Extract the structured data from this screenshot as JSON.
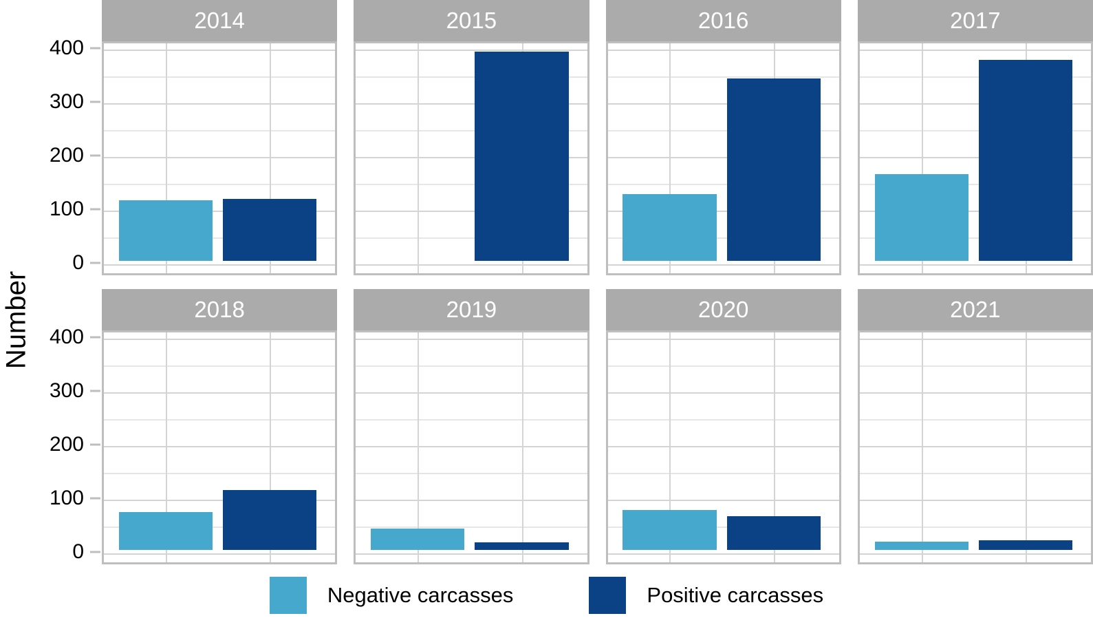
{
  "chart_data": {
    "type": "bar",
    "faceted": true,
    "facet_variable": "year",
    "facets": [
      "2014",
      "2015",
      "2016",
      "2017",
      "2018",
      "2019",
      "2020",
      "2021"
    ],
    "categories": [
      "Negative carcasses",
      "Positive carcasses"
    ],
    "series": [
      {
        "name": "Negative carcasses",
        "color": "#45a8cc",
        "values": [
          113,
          0,
          125,
          162,
          70,
          40,
          74,
          15
        ]
      },
      {
        "name": "Positive carcasses",
        "color": "#0a4285",
        "values": [
          115,
          390,
          340,
          375,
          112,
          14,
          63,
          18
        ]
      }
    ],
    "title": "",
    "xlabel": "",
    "ylabel": "Number",
    "ylim": [
      0,
      400
    ],
    "yticks": [
      0,
      100,
      200,
      300,
      400
    ],
    "minor_gridlines": [
      50,
      150,
      250,
      350
    ],
    "grid": "on",
    "legend_position": "bottom",
    "strip_background": "#ababab",
    "strip_text_color": "#ffffff",
    "panel_border_color": "#bebebe"
  }
}
